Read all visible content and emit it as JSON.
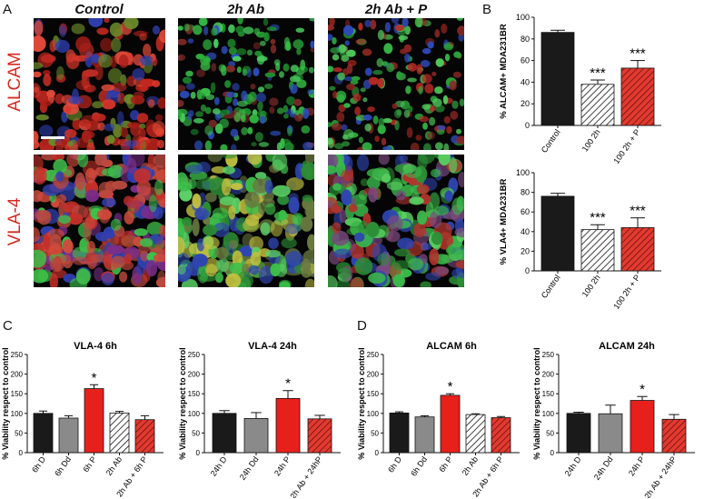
{
  "panels": {
    "a": "A",
    "b": "B",
    "c": "C",
    "d": "D"
  },
  "columns": [
    "Control",
    "2h Ab",
    "2h Ab + P"
  ],
  "rows": [
    "ALCAM",
    "VLA-4"
  ],
  "chart_data": [
    {
      "id": "b1",
      "type": "bar",
      "ylabel": "% ALCAM+ MDA231BR",
      "categories": [
        "Control",
        "100 2h",
        "100 2h + P"
      ],
      "values": [
        86,
        38,
        53
      ],
      "errors": [
        2,
        4,
        7
      ],
      "sig": [
        "",
        "***",
        "***"
      ],
      "ylim": [
        0,
        100
      ],
      "yticks": [
        0,
        20,
        40,
        60,
        80,
        100
      ],
      "fills": [
        "solid-black",
        "hatch-white",
        "hatch-red"
      ]
    },
    {
      "id": "b2",
      "type": "bar",
      "ylabel": "% VLA4+ MDA231BR",
      "categories": [
        "Control",
        "100 2h",
        "100 2h + P"
      ],
      "values": [
        76,
        42,
        44
      ],
      "errors": [
        3,
        5,
        10
      ],
      "sig": [
        "",
        "***",
        "***"
      ],
      "ylim": [
        0,
        100
      ],
      "yticks": [
        0,
        20,
        40,
        60,
        80,
        100
      ],
      "fills": [
        "solid-black",
        "hatch-white",
        "hatch-red"
      ]
    },
    {
      "id": "c1",
      "type": "bar",
      "title": "VLA-4 6h",
      "ylabel": "% Viability respect to control",
      "categories": [
        "6h D",
        "6h Dd",
        "6h P",
        "2h Ab",
        "2h Ab + 6h P"
      ],
      "values": [
        100,
        88,
        163,
        101,
        84
      ],
      "errors": [
        6,
        6,
        10,
        4,
        10
      ],
      "sig": [
        "",
        "",
        "*",
        "",
        ""
      ],
      "ylim": [
        0,
        250
      ],
      "yticks": [
        0,
        50,
        100,
        150,
        200,
        250
      ],
      "fills": [
        "solid-black",
        "solid-gray",
        "solid-red",
        "hatch-white",
        "hatch-red"
      ]
    },
    {
      "id": "c2",
      "type": "bar",
      "title": "VLA-4 24h",
      "ylabel": "% Viability respect to control",
      "categories": [
        "24h D",
        "24h Dd",
        "24h P",
        "2h Ab + 24hP"
      ],
      "values": [
        100,
        87,
        138,
        86
      ],
      "errors": [
        7,
        15,
        20,
        9
      ],
      "sig": [
        "",
        "",
        "*",
        ""
      ],
      "ylim": [
        0,
        250
      ],
      "yticks": [
        0,
        50,
        100,
        150,
        200,
        250
      ],
      "fills": [
        "solid-black",
        "solid-gray",
        "solid-red",
        "hatch-red"
      ]
    },
    {
      "id": "d1",
      "type": "bar",
      "title": "ALCAM 6h",
      "ylabel": "% Viability respect to control",
      "categories": [
        "6h D",
        "6h Dd",
        "6h P",
        "2h Ab",
        "2h Ab + 6h P"
      ],
      "values": [
        101,
        91,
        146,
        97,
        89
      ],
      "errors": [
        3,
        3,
        4,
        2,
        3
      ],
      "sig": [
        "",
        "",
        "*",
        "",
        ""
      ],
      "ylim": [
        0,
        250
      ],
      "yticks": [
        0,
        50,
        100,
        150,
        200,
        250
      ],
      "fills": [
        "solid-black",
        "solid-gray",
        "solid-red",
        "hatch-white",
        "hatch-red"
      ]
    },
    {
      "id": "d2",
      "type": "bar",
      "title": "ALCAM 24h",
      "ylabel": "% Viability respect to control",
      "categories": [
        "24h D",
        "24h Dd",
        "24h P",
        "2h Ab + 24hP"
      ],
      "values": [
        100,
        99,
        133,
        85
      ],
      "errors": [
        3,
        22,
        10,
        12
      ],
      "sig": [
        "",
        "",
        "*",
        ""
      ],
      "ylim": [
        0,
        250
      ],
      "yticks": [
        0,
        50,
        100,
        150,
        200,
        250
      ],
      "fills": [
        "solid-black",
        "solid-gray",
        "solid-red",
        "hatch-red"
      ]
    }
  ]
}
